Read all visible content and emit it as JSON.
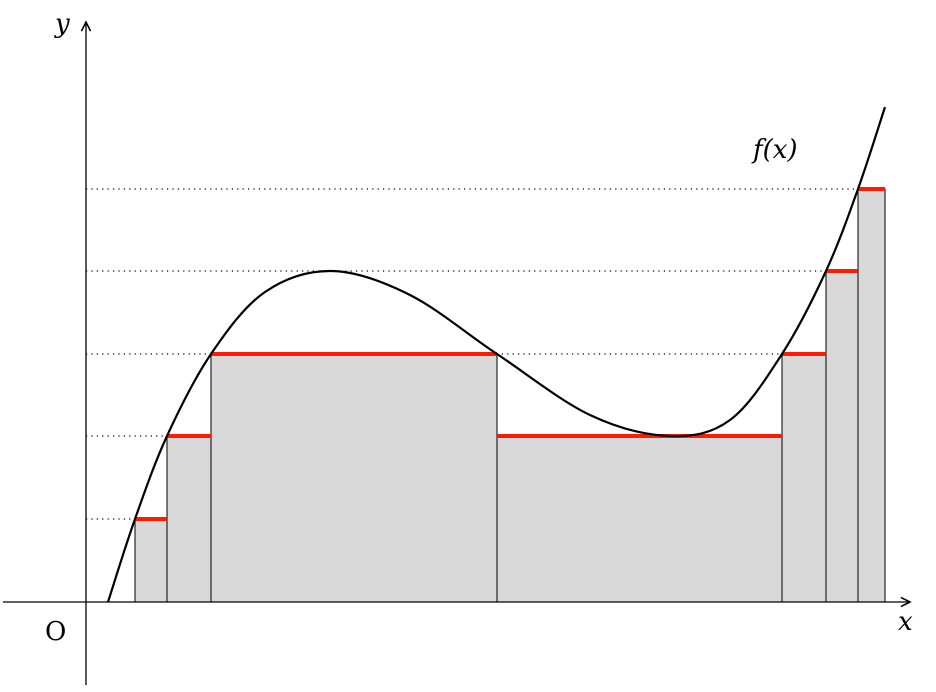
{
  "labels": {
    "y_axis": "y",
    "x_axis": "x",
    "origin": "O",
    "function": "f(x)"
  },
  "colors": {
    "bar_fill": "#d9d9d9",
    "level_line": "#ff1a00",
    "curve": "#000000"
  }
}
